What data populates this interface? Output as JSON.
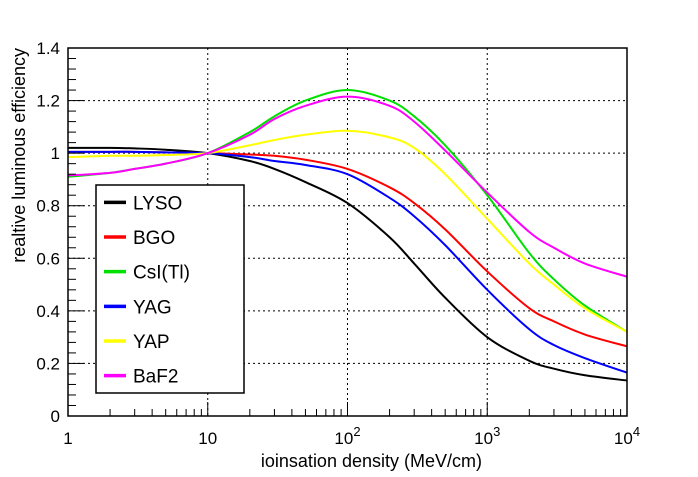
{
  "chart_data": {
    "type": "line",
    "title": "",
    "xlabel": "ioinsation density (MeV/cm)",
    "ylabel": "realtive luminous efficiency",
    "x_scale": "log",
    "xlim": [
      1,
      10000
    ],
    "ylim": [
      0,
      1.4
    ],
    "grid": true,
    "legend_position": "left-center",
    "x_ticks": [
      {
        "value": 1,
        "label": "1"
      },
      {
        "value": 10,
        "label": "10"
      },
      {
        "value": 100,
        "label": "10",
        "exp": "2"
      },
      {
        "value": 1000,
        "label": "10",
        "exp": "3"
      },
      {
        "value": 10000,
        "label": "10",
        "exp": "4"
      }
    ],
    "y_ticks": [
      {
        "value": 0,
        "label": "0"
      },
      {
        "value": 0.2,
        "label": "0.2"
      },
      {
        "value": 0.4,
        "label": "0.4"
      },
      {
        "value": 0.6,
        "label": "0.6"
      },
      {
        "value": 0.8,
        "label": "0.8"
      },
      {
        "value": 1.0,
        "label": "1"
      },
      {
        "value": 1.2,
        "label": "1.2"
      },
      {
        "value": 1.4,
        "label": "1.4"
      }
    ],
    "x": [
      1,
      2,
      3,
      5,
      10,
      20,
      30,
      50,
      100,
      200,
      300,
      500,
      1000,
      2000,
      3000,
      5000,
      10000
    ],
    "series": [
      {
        "name": "LYSO",
        "color": "#000000",
        "values": [
          1.02,
          1.02,
          1.018,
          1.013,
          1.0,
          0.97,
          0.94,
          0.89,
          0.81,
          0.68,
          0.58,
          0.45,
          0.3,
          0.21,
          0.18,
          0.155,
          0.135
        ]
      },
      {
        "name": "BGO",
        "color": "#ff0000",
        "values": [
          1.005,
          1.005,
          1.005,
          1.003,
          1.0,
          0.995,
          0.99,
          0.975,
          0.94,
          0.87,
          0.81,
          0.71,
          0.55,
          0.41,
          0.36,
          0.31,
          0.265
        ]
      },
      {
        "name": "CsI(Tl)",
        "color": "#00e000",
        "values": [
          0.91,
          0.925,
          0.94,
          0.96,
          1.0,
          1.08,
          1.14,
          1.2,
          1.24,
          1.2,
          1.14,
          1.03,
          0.84,
          0.62,
          0.52,
          0.42,
          0.32
        ]
      },
      {
        "name": "YAG",
        "color": "#0000ff",
        "values": [
          1.005,
          1.005,
          1.005,
          1.003,
          1.0,
          0.985,
          0.97,
          0.955,
          0.92,
          0.83,
          0.76,
          0.65,
          0.48,
          0.33,
          0.27,
          0.22,
          0.165
        ]
      },
      {
        "name": "YAP",
        "color": "#ffff00",
        "values": [
          0.985,
          0.99,
          0.99,
          0.993,
          1.0,
          1.03,
          1.05,
          1.07,
          1.085,
          1.06,
          1.02,
          0.92,
          0.75,
          0.58,
          0.5,
          0.41,
          0.32
        ]
      },
      {
        "name": "BaF2",
        "color": "#ff00ff",
        "values": [
          0.915,
          0.925,
          0.94,
          0.96,
          1.0,
          1.07,
          1.13,
          1.18,
          1.215,
          1.18,
          1.12,
          1.01,
          0.85,
          0.7,
          0.64,
          0.58,
          0.53
        ]
      }
    ]
  }
}
